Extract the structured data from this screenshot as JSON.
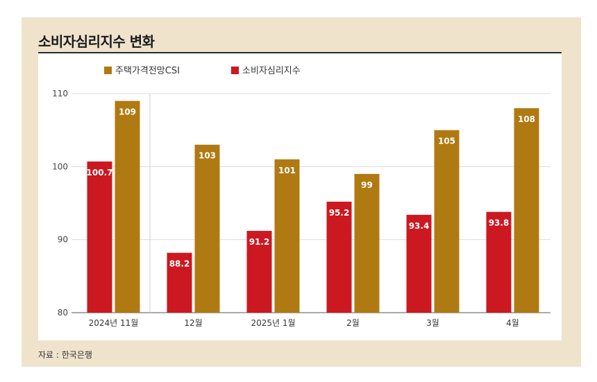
{
  "title": "소비자심리지수 변화",
  "source": "자료 : 한국은행",
  "colors": {
    "housing": "#b07a12",
    "consumer": "#cc1820",
    "frame": "#efe3cc"
  },
  "chart_data": {
    "type": "bar",
    "categories": [
      "2024년 11월",
      "12월",
      "2025년 1월",
      "2월",
      "3월",
      "4월"
    ],
    "series": [
      {
        "name": "소비자심리지수",
        "values": [
          100.7,
          88.2,
          91.2,
          95.2,
          93.4,
          93.8
        ],
        "labels": [
          "100.7",
          "88.2",
          "91.2",
          "95.2",
          "93.4",
          "93.8"
        ]
      },
      {
        "name": "주택가격전망CSI",
        "values": [
          109,
          103,
          101,
          99,
          105,
          108
        ],
        "labels": [
          "109",
          "103",
          "101",
          "99",
          "105",
          "108"
        ]
      }
    ],
    "ylim": [
      80,
      110
    ],
    "yticks": [
      80,
      90,
      100,
      110
    ],
    "legend": "top-left",
    "grid": true
  }
}
